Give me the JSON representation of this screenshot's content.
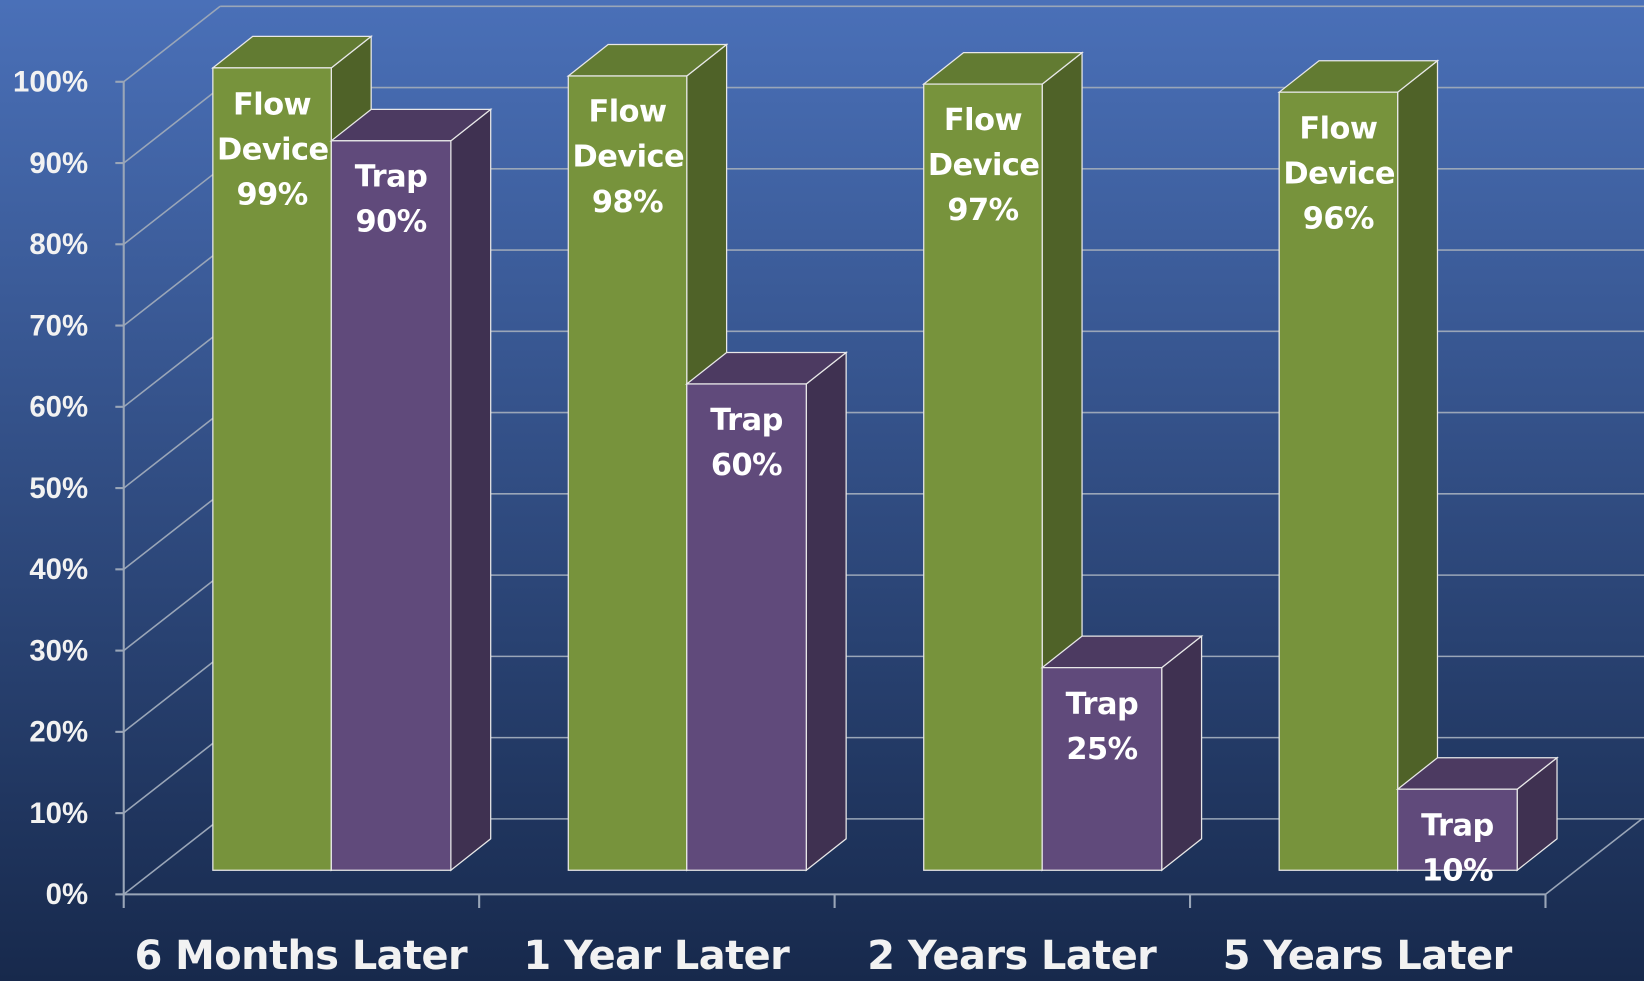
{
  "chart_data": {
    "type": "bar3d",
    "categories": [
      "6 Months Later",
      "1 Year Later",
      "2 Years Later",
      "5 Years Later"
    ],
    "series": [
      {
        "name": "Flow Device",
        "color": "#77933c",
        "values": [
          99,
          98,
          97,
          96
        ],
        "value_labels": [
          "99%",
          "98%",
          "97%",
          "96%"
        ]
      },
      {
        "name": "Trap",
        "color": "#604a7b",
        "values": [
          90,
          60,
          25,
          10
        ],
        "value_labels": [
          "90%",
          "60%",
          "25%",
          "10%"
        ]
      }
    ],
    "ylim": [
      0,
      100
    ],
    "yticks": [
      {
        "value": 0,
        "label": "0%"
      },
      {
        "value": 10,
        "label": "10%"
      },
      {
        "value": 20,
        "label": "20%"
      },
      {
        "value": 30,
        "label": "30%"
      },
      {
        "value": 40,
        "label": "40%"
      },
      {
        "value": 50,
        "label": "50%"
      },
      {
        "value": 60,
        "label": "60%"
      },
      {
        "value": 70,
        "label": "70%"
      },
      {
        "value": 80,
        "label": "80%"
      },
      {
        "value": 90,
        "label": "90%"
      },
      {
        "value": 100,
        "label": "100%"
      }
    ],
    "grid": true
  }
}
